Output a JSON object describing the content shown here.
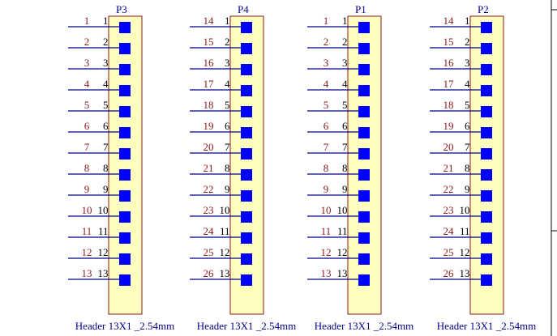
{
  "colors": {
    "background": "#ffffff",
    "body_fill": "#ffffc0",
    "body_stroke": "#8b1a1a",
    "wire": "#00008b",
    "pin_square": "#0000ff",
    "net_label": "#8b1a1a",
    "designator": "#00008b",
    "value_text": "#00008b",
    "pin_number": "#000000",
    "frame": "#000000"
  },
  "headers": [
    {
      "designator": "P3",
      "value": "Header 13X1 _2.54mm",
      "pins": [
        {
          "net": "1",
          "number": "1"
        },
        {
          "net": "2",
          "number": "2"
        },
        {
          "net": "3",
          "number": "3"
        },
        {
          "net": "4",
          "number": "4"
        },
        {
          "net": "5",
          "number": "5"
        },
        {
          "net": "6",
          "number": "6"
        },
        {
          "net": "7",
          "number": "7"
        },
        {
          "net": "8",
          "number": "8"
        },
        {
          "net": "9",
          "number": "9"
        },
        {
          "net": "10",
          "number": "10"
        },
        {
          "net": "11",
          "number": "11"
        },
        {
          "net": "12",
          "number": "12"
        },
        {
          "net": "13",
          "number": "13"
        }
      ]
    },
    {
      "designator": "P4",
      "value": "Header 13X1 _2.54mm",
      "pins": [
        {
          "net": "14",
          "number": "1"
        },
        {
          "net": "15",
          "number": "2"
        },
        {
          "net": "16",
          "number": "3"
        },
        {
          "net": "17",
          "number": "4"
        },
        {
          "net": "18",
          "number": "5"
        },
        {
          "net": "19",
          "number": "6"
        },
        {
          "net": "20",
          "number": "7"
        },
        {
          "net": "21",
          "number": "8"
        },
        {
          "net": "22",
          "number": "9"
        },
        {
          "net": "23",
          "number": "10"
        },
        {
          "net": "24",
          "number": "11"
        },
        {
          "net": "25",
          "number": "12"
        },
        {
          "net": "26",
          "number": "13"
        }
      ]
    },
    {
      "designator": "P1",
      "value": "Header 13X1 _2.54mm",
      "pins": [
        {
          "net": "1",
          "number": "1"
        },
        {
          "net": "2",
          "number": "2"
        },
        {
          "net": "3",
          "number": "3"
        },
        {
          "net": "4",
          "number": "4"
        },
        {
          "net": "5",
          "number": "5"
        },
        {
          "net": "6",
          "number": "6"
        },
        {
          "net": "7",
          "number": "7"
        },
        {
          "net": "8",
          "number": "8"
        },
        {
          "net": "9",
          "number": "9"
        },
        {
          "net": "10",
          "number": "10"
        },
        {
          "net": "11",
          "number": "11"
        },
        {
          "net": "12",
          "number": "12"
        },
        {
          "net": "13",
          "number": "13"
        }
      ]
    },
    {
      "designator": "P2",
      "value": "Header 13X1 _2.54mm",
      "pins": [
        {
          "net": "14",
          "number": "1"
        },
        {
          "net": "15",
          "number": "2"
        },
        {
          "net": "16",
          "number": "3"
        },
        {
          "net": "17",
          "number": "4"
        },
        {
          "net": "18",
          "number": "5"
        },
        {
          "net": "19",
          "number": "6"
        },
        {
          "net": "20",
          "number": "7"
        },
        {
          "net": "21",
          "number": "8"
        },
        {
          "net": "22",
          "number": "9"
        },
        {
          "net": "23",
          "number": "10"
        },
        {
          "net": "24",
          "number": "11"
        },
        {
          "net": "25",
          "number": "12"
        },
        {
          "net": "26",
          "number": "13"
        }
      ]
    }
  ]
}
